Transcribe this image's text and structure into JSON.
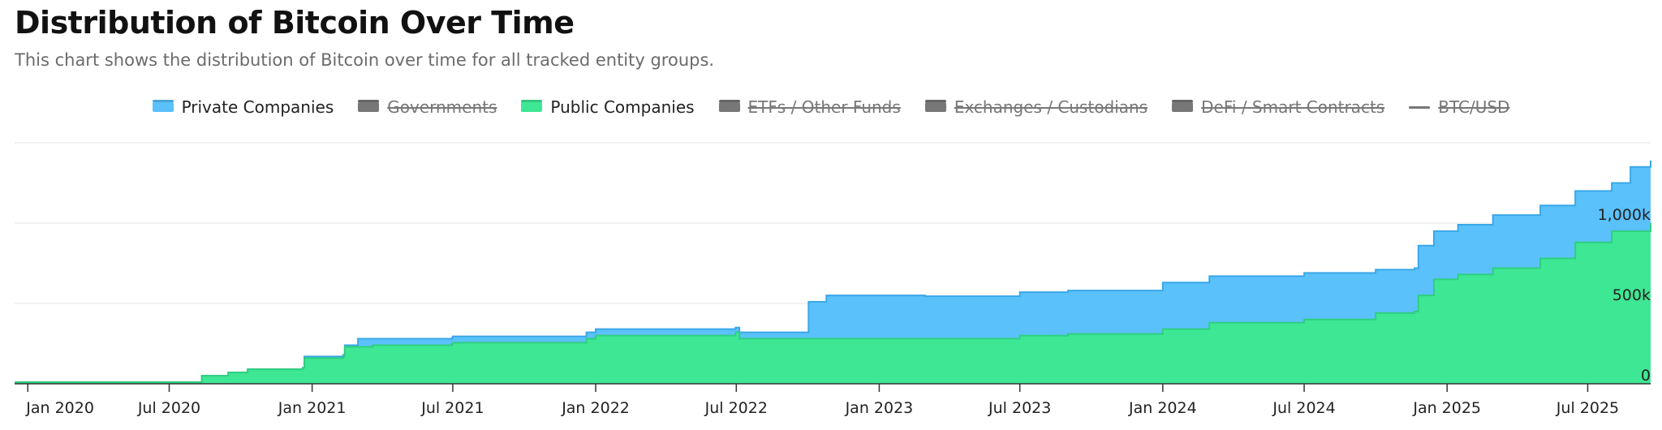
{
  "header": {
    "title": "Distribution of Bitcoin Over Time",
    "subtitle": "This chart shows the distribution of Bitcoin over time for all tracked entity groups."
  },
  "legend": {
    "items": [
      {
        "key": "private",
        "label": "Private Companies",
        "color": "#5bc1fb",
        "visible": true,
        "kind": "area"
      },
      {
        "key": "gov",
        "label": "Governments",
        "color": "#666666",
        "visible": false,
        "kind": "area"
      },
      {
        "key": "public",
        "label": "Public Companies",
        "color": "#3ee794",
        "visible": true,
        "kind": "area"
      },
      {
        "key": "etf",
        "label": "ETFs / Other Funds",
        "color": "#666666",
        "visible": false,
        "kind": "area"
      },
      {
        "key": "exchanges",
        "label": "Exchanges / Custodians",
        "color": "#666666",
        "visible": false,
        "kind": "area"
      },
      {
        "key": "defi",
        "label": "DeFi / Smart Contracts",
        "color": "#666666",
        "visible": false,
        "kind": "area"
      },
      {
        "key": "btcusd",
        "label": "BTC/USD",
        "color": "#555555",
        "visible": false,
        "kind": "line"
      }
    ]
  },
  "chart_data": {
    "type": "area",
    "stacked": true,
    "title": "Distribution of Bitcoin Over Time",
    "xlabel": "",
    "ylabel": "",
    "x_tick_labels": [
      "Jan 2020",
      "Jul 2020",
      "Jan 2021",
      "Jul 2021",
      "Jan 2022",
      "Jul 2022",
      "Jan 2023",
      "Jul 2023",
      "Jan 2024",
      "Jul 2024",
      "Jan 2025",
      "Jul 2025"
    ],
    "y_tick_labels": [
      "0",
      "500k",
      "1,000k"
    ],
    "y_ticks": [
      0,
      500000,
      1000000
    ],
    "xlim": [
      "2019-12-15",
      "2025-09-20"
    ],
    "ylim": [
      0,
      1500000
    ],
    "grid": true,
    "legend_position": "top-center",
    "series": [
      {
        "name": "Public Companies",
        "color": "#3ee794",
        "stroke": "#2fcf7e",
        "points": [
          [
            "2019-12-15",
            10000
          ],
          [
            "2020-08-10",
            10000
          ],
          [
            "2020-08-12",
            50000
          ],
          [
            "2020-09-15",
            70000
          ],
          [
            "2020-10-10",
            90000
          ],
          [
            "2020-12-20",
            100000
          ],
          [
            "2020-12-22",
            160000
          ],
          [
            "2021-02-10",
            170000
          ],
          [
            "2021-02-12",
            230000
          ],
          [
            "2021-03-20",
            240000
          ],
          [
            "2021-06-30",
            250000
          ],
          [
            "2021-07-01",
            255000
          ],
          [
            "2021-12-20",
            280000
          ],
          [
            "2022-01-01",
            300000
          ],
          [
            "2022-06-30",
            320000
          ],
          [
            "2022-07-05",
            280000
          ],
          [
            "2023-07-01",
            300000
          ],
          [
            "2023-09-01",
            310000
          ],
          [
            "2024-01-01",
            340000
          ],
          [
            "2024-03-01",
            380000
          ],
          [
            "2024-07-01",
            400000
          ],
          [
            "2024-10-01",
            440000
          ],
          [
            "2024-11-20",
            450000
          ],
          [
            "2024-11-25",
            550000
          ],
          [
            "2024-12-15",
            650000
          ],
          [
            "2025-01-15",
            680000
          ],
          [
            "2025-03-01",
            720000
          ],
          [
            "2025-05-01",
            780000
          ],
          [
            "2025-06-15",
            880000
          ],
          [
            "2025-08-01",
            950000
          ],
          [
            "2025-09-20",
            1000000
          ]
        ]
      },
      {
        "name": "Private Companies",
        "color": "#5bc1fb",
        "stroke": "#3aa8e8",
        "points": [
          [
            "2019-12-15",
            10000
          ],
          [
            "2020-08-10",
            10000
          ],
          [
            "2020-08-12",
            50000
          ],
          [
            "2020-09-15",
            70000
          ],
          [
            "2020-10-10",
            90000
          ],
          [
            "2020-12-20",
            100000
          ],
          [
            "2020-12-22",
            170000
          ],
          [
            "2021-02-10",
            180000
          ],
          [
            "2021-02-12",
            240000
          ],
          [
            "2021-03-01",
            280000
          ],
          [
            "2021-06-30",
            285000
          ],
          [
            "2021-07-01",
            295000
          ],
          [
            "2021-12-20",
            320000
          ],
          [
            "2022-01-01",
            340000
          ],
          [
            "2022-06-30",
            350000
          ],
          [
            "2022-07-05",
            320000
          ],
          [
            "2022-09-30",
            320000
          ],
          [
            "2022-10-02",
            510000
          ],
          [
            "2022-10-25",
            550000
          ],
          [
            "2023-03-01",
            545000
          ],
          [
            "2023-07-01",
            570000
          ],
          [
            "2023-09-01",
            580000
          ],
          [
            "2024-01-01",
            630000
          ],
          [
            "2024-03-01",
            670000
          ],
          [
            "2024-07-01",
            690000
          ],
          [
            "2024-10-01",
            710000
          ],
          [
            "2024-11-20",
            720000
          ],
          [
            "2024-11-25",
            860000
          ],
          [
            "2024-12-15",
            950000
          ],
          [
            "2025-01-15",
            990000
          ],
          [
            "2025-03-01",
            1050000
          ],
          [
            "2025-05-01",
            1110000
          ],
          [
            "2025-06-15",
            1200000
          ],
          [
            "2025-08-01",
            1250000
          ],
          [
            "2025-08-25",
            1350000
          ],
          [
            "2025-09-20",
            1390000
          ]
        ]
      }
    ]
  }
}
